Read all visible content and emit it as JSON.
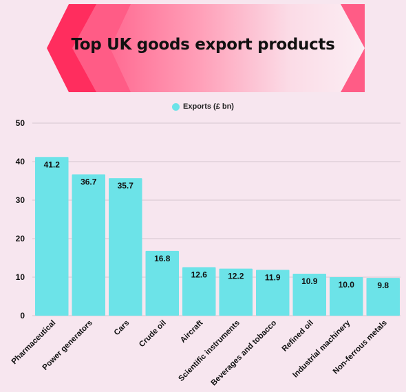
{
  "title": "Top UK goods export products",
  "colors": {
    "bar": "#6ce3e8",
    "background": "#f7e6ef",
    "banner_dark": "#ff2d5e",
    "banner_mid": "#ff5c86",
    "gridline": "#d6c7cf"
  },
  "chart_data": {
    "type": "bar",
    "title": "Top UK goods export products",
    "categories": [
      "Pharmaceutical",
      "Power generators",
      "Cars",
      "Crude oil",
      "Aircraft",
      "Scientific instruments",
      "Beverages and tobacco",
      "Refined oil",
      "Industrial machinery",
      "Non-ferrous metals"
    ],
    "series": [
      {
        "name": "Exports (£ bn)",
        "values": [
          41.2,
          36.7,
          35.7,
          16.8,
          12.6,
          12.2,
          11.9,
          10.9,
          10.0,
          9.8
        ]
      }
    ],
    "value_labels": [
      "41.2",
      "36.7",
      "35.7",
      "16.8",
      "12.6",
      "12.2",
      "11.9",
      "10.9",
      "10.0",
      "9.8"
    ],
    "y_ticks": [
      0,
      10,
      20,
      30,
      40,
      50
    ],
    "ylim": [
      0,
      50
    ],
    "xlabel": "",
    "ylabel": "",
    "grid": true,
    "legend_position": "top-center"
  }
}
